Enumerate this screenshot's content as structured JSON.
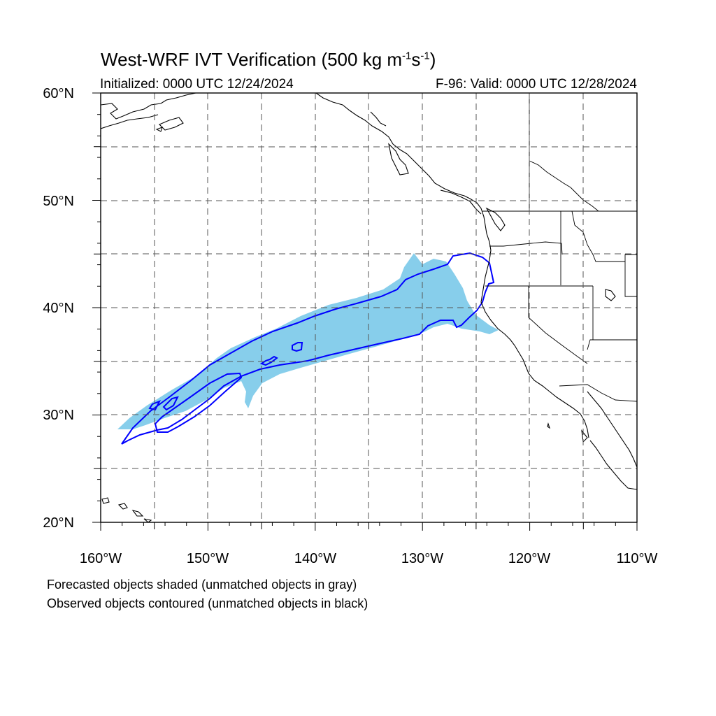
{
  "title": {
    "main": "West-WRF IVT Verification (500 kg m",
    "exp1": "-1",
    "mid": "s",
    "exp2": "-1",
    "end": ")"
  },
  "initialized": "Initialized: 0000 UTC 12/24/2024",
  "valid": "F-96: Valid: 0000 UTC 12/28/2024",
  "lat_labels": [
    "60°N",
    "50°N",
    "40°N",
    "30°N",
    "20°N"
  ],
  "lon_labels": [
    "160°W",
    "150°W",
    "140°W",
    "130°W",
    "120°W",
    "110°W"
  ],
  "notes": [
    "Forecasted objects shaded (unmatched objects in gray)",
    "Observed objects contoured (unmatched objects in black)"
  ],
  "colors": {
    "forecast_fill": "#87ceeb",
    "observed_contour": "#0000ff",
    "coastline": "#000000",
    "grid": "#555555"
  }
}
